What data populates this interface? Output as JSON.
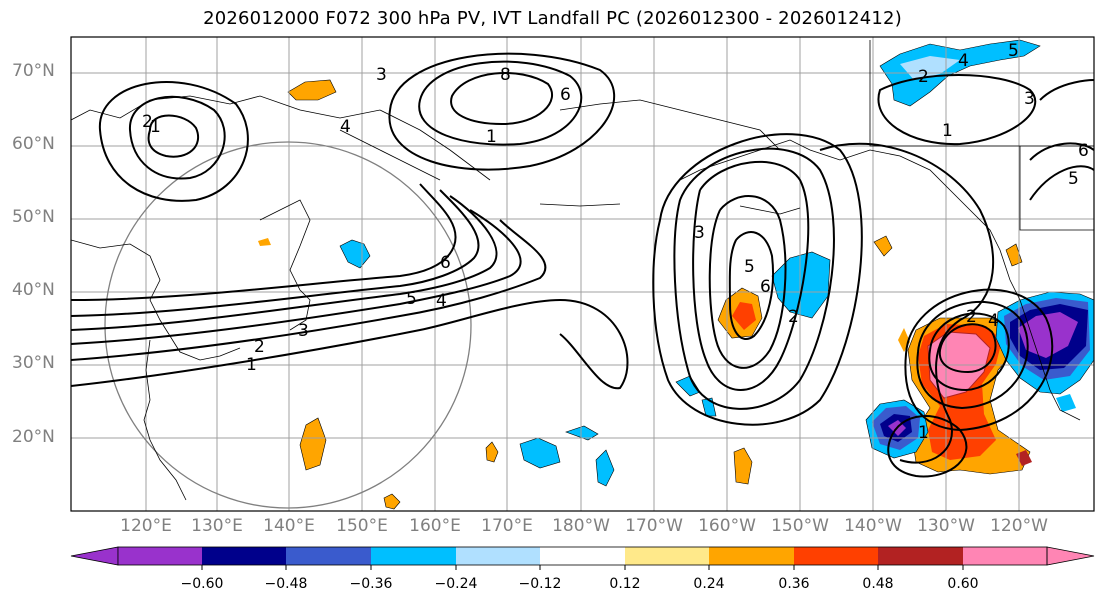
{
  "title": "2026012000 F072 300 hPa PV, IVT Landfall PC (2026012300 - 2026012412)",
  "lat_labels": [
    "70°N",
    "60°N",
    "50°N",
    "40°N",
    "30°N",
    "20°N"
  ],
  "lon_labels": [
    "120°E",
    "130°E",
    "140°E",
    "150°E",
    "160°E",
    "170°E",
    "180°W",
    "170°W",
    "160°W",
    "150°W",
    "140°W",
    "130°W",
    "120°W"
  ],
  "colorbar": {
    "ticks": [
      "−0.60",
      "−0.48",
      "−0.36",
      "−0.24",
      "−0.12",
      "0.12",
      "0.24",
      "0.36",
      "0.48",
      "0.60"
    ],
    "colors": [
      "#9932cc",
      "#00008b",
      "#3a5bcd",
      "#00bfff",
      "#b0e0ff",
      "#ffffff",
      "#ffe98a",
      "#ffa500",
      "#ff4000",
      "#b22222",
      "#ff85b4"
    ]
  },
  "pv_contour_labels": [
    "1",
    "2",
    "3",
    "4",
    "5",
    "6",
    "8",
    "1",
    "2",
    "3",
    "4",
    "5",
    "6",
    "1",
    "2",
    "3",
    "4",
    "5",
    "6",
    "1",
    "2",
    "3",
    "4",
    "5",
    "6",
    "1",
    "2"
  ]
}
